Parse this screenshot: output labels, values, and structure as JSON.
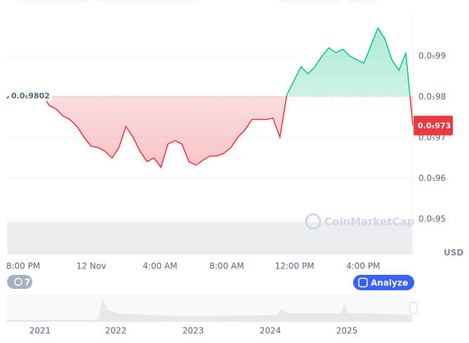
{
  "chart_data": {
    "type": "line",
    "series": [
      {
        "name": "Price",
        "color_up": "#16c784",
        "color_down": "#ea3943",
        "values": [
          9.7966e-07,
          9.8138e-07,
          9.8086e-07,
          9.8138e-07,
          9.8086e-07,
          9.8103e-07,
          9.7793e-07,
          9.7707e-07,
          9.7534e-07,
          9.7448e-07,
          9.7276e-07,
          9.7017e-07,
          9.6793e-07,
          9.6759e-07,
          9.6672e-07,
          9.65e-07,
          9.6759e-07,
          9.7276e-07,
          9.7017e-07,
          9.6672e-07,
          9.6414e-07,
          9.65e-07,
          9.6276e-07,
          9.6845e-07,
          9.6931e-07,
          9.6845e-07,
          9.6414e-07,
          9.6328e-07,
          9.6448e-07,
          9.6552e-07,
          9.6552e-07,
          9.6621e-07,
          9.6759e-07,
          9.7017e-07,
          9.719e-07,
          9.7448e-07,
          9.7448e-07,
          9.7448e-07,
          9.7483e-07,
          9.7017e-07,
          9.8052e-07,
          9.8397e-07,
          9.8741e-07,
          9.8569e-07,
          9.8741e-07,
          9.9e-07,
          9.9207e-07,
          9.9086e-07,
          9.9172e-07,
          9.9e-07,
          9.8914e-07,
          9.8828e-07,
          9.9259e-07,
          9.969e-07,
          9.9431e-07,
          9.8914e-07,
          9.8655e-07,
          9.9086e-07,
          9.73e-07
        ]
      }
    ],
    "xlim": [
      0,
      58
    ],
    "xticks": [
      {
        "value": 2.31,
        "label": "8:00 PM"
      },
      {
        "value": 12.04,
        "label": "12 Nov"
      },
      {
        "value": 21.87,
        "label": "4:00 AM"
      },
      {
        "value": 31.4,
        "label": "8:00 AM"
      },
      {
        "value": 41.1,
        "label": "12:00 PM"
      },
      {
        "value": 50.9,
        "label": "4:00 PM"
      }
    ],
    "ylim": [
      9.4138e-07,
      1.00034e-06
    ],
    "yticks": [
      {
        "value": 9.5e-07,
        "label": "0.0₅95"
      },
      {
        "value": 9.6e-07,
        "label": "0.0₅96"
      },
      {
        "value": 9.7e-07,
        "label": "0.0₅97"
      },
      {
        "value": 9.8e-07,
        "label": "0.0₅98"
      },
      {
        "value": 9.9e-07,
        "label": "0.0₅99"
      }
    ],
    "grid": true,
    "baseline": {
      "value": 9.802e-07,
      "label": "0.0₅9802"
    },
    "current_price": {
      "value": 9.73e-07,
      "label": "0.0₅973"
    },
    "currency": "USD",
    "watermark": "CoinMarketCap",
    "navigator_years": [
      "2021",
      "2022",
      "2023",
      "2024",
      "2025"
    ]
  },
  "badge": "7",
  "analyze_button": "Analyze"
}
